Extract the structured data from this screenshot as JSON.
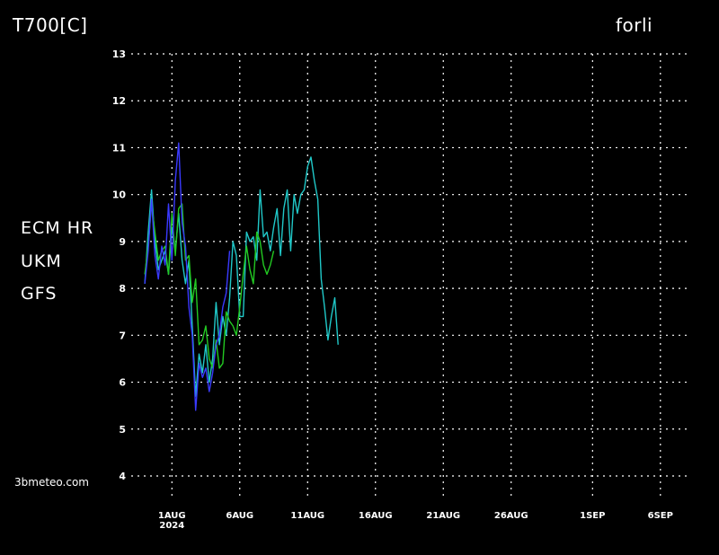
{
  "header": {
    "title": "T700[C]",
    "station": "forli"
  },
  "credit": "3bmeteo.com",
  "chart_data": {
    "type": "line",
    "title": "T700[C]",
    "ylabel": "",
    "xlabel": "",
    "ylim": [
      4,
      13
    ],
    "yticks": [
      "4",
      "5",
      "6",
      "7",
      "8",
      "9",
      "10",
      "11",
      "12",
      "13"
    ],
    "xlim": [
      "2024-07-29",
      "2024-09-08"
    ],
    "xticks": [
      {
        "date": "2024-08-01",
        "label": "1AUG",
        "sub": "2024"
      },
      {
        "date": "2024-08-06",
        "label": "6AUG",
        "sub": ""
      },
      {
        "date": "2024-08-11",
        "label": "11AUG",
        "sub": ""
      },
      {
        "date": "2024-08-16",
        "label": "16AUG",
        "sub": ""
      },
      {
        "date": "2024-08-21",
        "label": "21AUG",
        "sub": ""
      },
      {
        "date": "2024-08-26",
        "label": "26AUG",
        "sub": ""
      },
      {
        "date": "2024-09-01",
        "label": "1SEP",
        "sub": ""
      },
      {
        "date": "2024-09-06",
        "label": "6SEP",
        "sub": ""
      }
    ],
    "grid": true,
    "legend_position": "left",
    "series": [
      {
        "name": "ECM HR",
        "color": "#22c922",
        "points": [
          [
            "2024-07-30 00:00",
            8.3
          ],
          [
            "2024-07-30 06:00",
            8.9
          ],
          [
            "2024-07-30 12:00",
            9.8
          ],
          [
            "2024-07-30 18:00",
            9.2
          ],
          [
            "2024-07-31 00:00",
            8.6
          ],
          [
            "2024-07-31 06:00",
            8.8
          ],
          [
            "2024-07-31 12:00",
            8.9
          ],
          [
            "2024-07-31 18:00",
            8.3
          ],
          [
            "2024-08-01 00:00",
            9.6
          ],
          [
            "2024-08-01 06:00",
            8.7
          ],
          [
            "2024-08-01 12:00",
            9.7
          ],
          [
            "2024-08-01 18:00",
            9.8
          ],
          [
            "2024-08-02 00:00",
            8.6
          ],
          [
            "2024-08-02 06:00",
            8.7
          ],
          [
            "2024-08-02 12:00",
            7.7
          ],
          [
            "2024-08-02 18:00",
            8.2
          ],
          [
            "2024-08-03 00:00",
            6.8
          ],
          [
            "2024-08-03 06:00",
            6.9
          ],
          [
            "2024-08-03 12:00",
            7.2
          ],
          [
            "2024-08-03 18:00",
            6.5
          ],
          [
            "2024-08-04 00:00",
            6.3
          ],
          [
            "2024-08-04 06:00",
            6.9
          ],
          [
            "2024-08-04 12:00",
            6.3
          ],
          [
            "2024-08-04 18:00",
            6.4
          ],
          [
            "2024-08-05 00:00",
            7.5
          ],
          [
            "2024-08-05 06:00",
            7.3
          ],
          [
            "2024-08-05 12:00",
            7.2
          ],
          [
            "2024-08-05 18:00",
            7.0
          ],
          [
            "2024-08-06 00:00",
            7.6
          ],
          [
            "2024-08-06 06:00",
            8.3
          ],
          [
            "2024-08-06 12:00",
            8.9
          ],
          [
            "2024-08-06 18:00",
            8.4
          ],
          [
            "2024-08-07 00:00",
            8.1
          ],
          [
            "2024-08-07 06:00",
            9.2
          ],
          [
            "2024-08-07 12:00",
            9.0
          ],
          [
            "2024-08-07 18:00",
            8.5
          ],
          [
            "2024-08-08 00:00",
            8.3
          ],
          [
            "2024-08-08 06:00",
            8.5
          ],
          [
            "2024-08-08 12:00",
            8.8
          ]
        ]
      },
      {
        "name": "UKM",
        "color": "#3a3aff",
        "points": [
          [
            "2024-07-30 00:00",
            8.1
          ],
          [
            "2024-07-30 06:00",
            8.8
          ],
          [
            "2024-07-30 12:00",
            9.9
          ],
          [
            "2024-07-30 18:00",
            8.7
          ],
          [
            "2024-07-31 00:00",
            8.2
          ],
          [
            "2024-07-31 06:00",
            8.9
          ],
          [
            "2024-07-31 12:00",
            8.5
          ],
          [
            "2024-07-31 18:00",
            9.8
          ],
          [
            "2024-08-01 00:00",
            8.6
          ],
          [
            "2024-08-01 06:00",
            10.3
          ],
          [
            "2024-08-01 12:00",
            11.1
          ],
          [
            "2024-08-01 18:00",
            9.4
          ],
          [
            "2024-08-02 00:00",
            8.9
          ],
          [
            "2024-08-02 06:00",
            7.6
          ],
          [
            "2024-08-02 12:00",
            7.0
          ],
          [
            "2024-08-02 18:00",
            5.4
          ],
          [
            "2024-08-03 00:00",
            6.4
          ],
          [
            "2024-08-03 06:00",
            6.1
          ],
          [
            "2024-08-03 12:00",
            6.3
          ],
          [
            "2024-08-03 18:00",
            5.8
          ],
          [
            "2024-08-04 00:00",
            6.2
          ],
          [
            "2024-08-04 06:00",
            6.8
          ],
          [
            "2024-08-04 12:00",
            7.0
          ],
          [
            "2024-08-04 18:00",
            7.6
          ],
          [
            "2024-08-05 00:00",
            7.9
          ],
          [
            "2024-08-05 06:00",
            8.8
          ]
        ]
      },
      {
        "name": "GFS",
        "color": "#20c8c8",
        "points": [
          [
            "2024-07-30 00:00",
            8.1
          ],
          [
            "2024-07-30 06:00",
            9.2
          ],
          [
            "2024-07-30 12:00",
            10.1
          ],
          [
            "2024-07-30 18:00",
            9.0
          ],
          [
            "2024-07-31 00:00",
            8.4
          ],
          [
            "2024-07-31 06:00",
            8.6
          ],
          [
            "2024-07-31 12:00",
            8.8
          ],
          [
            "2024-07-31 18:00",
            8.3
          ],
          [
            "2024-08-01 00:00",
            9.3
          ],
          [
            "2024-08-01 06:00",
            8.8
          ],
          [
            "2024-08-01 12:00",
            9.6
          ],
          [
            "2024-08-01 18:00",
            8.6
          ],
          [
            "2024-08-02 00:00",
            8.1
          ],
          [
            "2024-08-02 06:00",
            8.6
          ],
          [
            "2024-08-02 12:00",
            7.2
          ],
          [
            "2024-08-02 18:00",
            5.7
          ],
          [
            "2024-08-03 00:00",
            6.6
          ],
          [
            "2024-08-03 06:00",
            6.2
          ],
          [
            "2024-08-03 12:00",
            6.8
          ],
          [
            "2024-08-03 18:00",
            6.0
          ],
          [
            "2024-08-04 00:00",
            6.5
          ],
          [
            "2024-08-04 06:00",
            7.7
          ],
          [
            "2024-08-04 12:00",
            6.8
          ],
          [
            "2024-08-04 18:00",
            7.4
          ],
          [
            "2024-08-05 00:00",
            7.0
          ],
          [
            "2024-08-05 06:00",
            7.8
          ],
          [
            "2024-08-05 12:00",
            9.0
          ],
          [
            "2024-08-05 18:00",
            8.7
          ],
          [
            "2024-08-06 00:00",
            7.4
          ],
          [
            "2024-08-06 06:00",
            7.4
          ],
          [
            "2024-08-06 12:00",
            9.2
          ],
          [
            "2024-08-06 18:00",
            9.0
          ],
          [
            "2024-08-07 00:00",
            9.1
          ],
          [
            "2024-08-07 06:00",
            8.6
          ],
          [
            "2024-08-07 12:00",
            10.1
          ],
          [
            "2024-08-07 18:00",
            9.1
          ],
          [
            "2024-08-08 00:00",
            9.2
          ],
          [
            "2024-08-08 06:00",
            8.8
          ],
          [
            "2024-08-08 12:00",
            9.3
          ],
          [
            "2024-08-08 18:00",
            9.7
          ],
          [
            "2024-08-09 00:00",
            8.7
          ],
          [
            "2024-08-09 06:00",
            9.7
          ],
          [
            "2024-08-09 12:00",
            10.1
          ],
          [
            "2024-08-09 18:00",
            8.8
          ],
          [
            "2024-08-10 00:00",
            10.0
          ],
          [
            "2024-08-10 06:00",
            9.6
          ],
          [
            "2024-08-10 12:00",
            10.0
          ],
          [
            "2024-08-10 18:00",
            10.1
          ],
          [
            "2024-08-11 00:00",
            10.6
          ],
          [
            "2024-08-11 06:00",
            10.8
          ],
          [
            "2024-08-11 12:00",
            10.3
          ],
          [
            "2024-08-11 18:00",
            9.9
          ],
          [
            "2024-08-12 00:00",
            8.2
          ],
          [
            "2024-08-12 06:00",
            7.6
          ],
          [
            "2024-08-12 12:00",
            6.9
          ],
          [
            "2024-08-12 18:00",
            7.4
          ],
          [
            "2024-08-13 00:00",
            7.8
          ],
          [
            "2024-08-13 06:00",
            6.8
          ]
        ]
      }
    ]
  }
}
